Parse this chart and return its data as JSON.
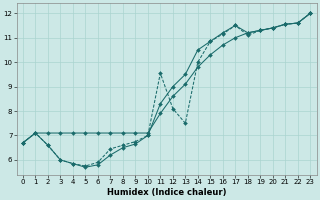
{
  "xlabel": "Humidex (Indice chaleur)",
  "background_color": "#cce8e6",
  "line_color": "#1a6b6b",
  "xlim_min": -0.5,
  "xlim_max": 23.5,
  "ylim_min": 5.4,
  "ylim_max": 12.4,
  "xticks": [
    0,
    1,
    2,
    3,
    4,
    5,
    6,
    7,
    8,
    9,
    10,
    11,
    12,
    13,
    14,
    15,
    16,
    17,
    18,
    19,
    20,
    21,
    22,
    23
  ],
  "yticks": [
    6,
    7,
    8,
    9,
    10,
    11,
    12
  ],
  "line1_x": [
    0,
    1,
    2,
    3,
    4,
    5,
    6,
    7,
    8,
    9,
    10,
    11,
    12,
    13,
    14,
    15,
    16,
    17,
    18,
    19,
    20,
    21,
    22,
    23
  ],
  "line1_y": [
    6.7,
    7.1,
    7.1,
    7.1,
    7.1,
    7.1,
    7.1,
    7.1,
    7.1,
    7.1,
    7.1,
    7.9,
    8.6,
    9.1,
    9.8,
    10.3,
    10.7,
    11.0,
    11.2,
    11.3,
    11.4,
    11.55,
    11.6,
    12.0
  ],
  "line2_x": [
    0,
    1,
    2,
    3,
    4,
    5,
    6,
    7,
    8,
    9,
    10,
    11,
    12,
    13,
    14,
    15,
    16,
    17,
    18,
    19,
    20,
    21,
    22,
    23
  ],
  "line2_y": [
    6.7,
    7.1,
    6.6,
    6.0,
    5.85,
    5.7,
    5.8,
    6.2,
    6.5,
    6.65,
    7.0,
    8.3,
    9.0,
    9.5,
    10.5,
    10.85,
    11.2,
    11.5,
    11.2,
    11.3,
    11.4,
    11.55,
    11.6,
    12.0
  ],
  "line3_x": [
    0,
    1,
    2,
    3,
    4,
    5,
    6,
    7,
    8,
    9,
    10,
    11,
    12,
    13,
    14,
    15,
    16,
    17,
    18,
    19,
    20,
    21,
    22,
    23
  ],
  "line3_y": [
    6.7,
    7.1,
    6.6,
    6.0,
    5.85,
    5.75,
    5.9,
    6.45,
    6.6,
    6.75,
    7.0,
    9.55,
    8.1,
    7.5,
    10.0,
    10.85,
    11.15,
    11.5,
    11.1,
    11.3,
    11.4,
    11.55,
    11.6,
    12.0
  ]
}
